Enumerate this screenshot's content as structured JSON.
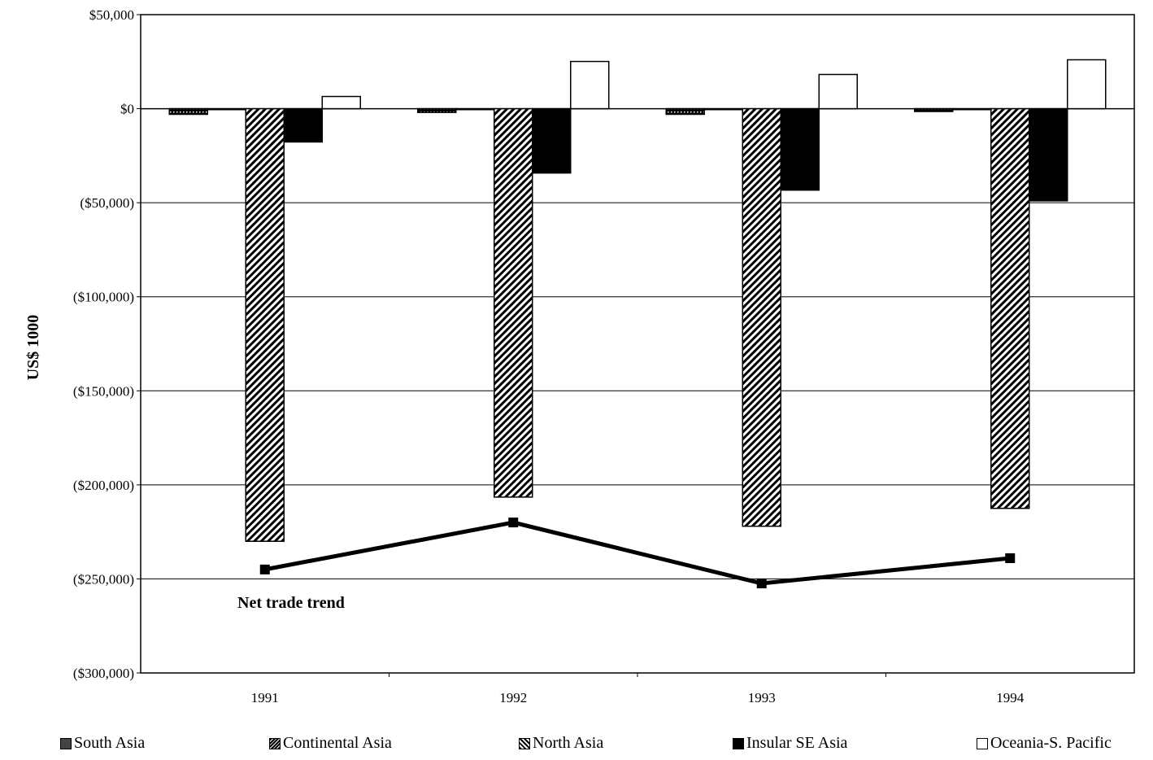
{
  "chart_data": {
    "type": "bar",
    "title": "",
    "xlabel": "",
    "ylabel": "US$ 1000",
    "ylim": [
      -300000,
      50000
    ],
    "yticks": [
      50000,
      0,
      -50000,
      -100000,
      -150000,
      -200000,
      -250000,
      -300000
    ],
    "ytick_labels": [
      "$50,000",
      "$0",
      "($50,000)",
      "($100,000)",
      "($150,000)",
      "($200,000)",
      "($250,000)",
      "($300,000)"
    ],
    "grid": true,
    "legend_position": "bottom",
    "categories": [
      "1991",
      "1992",
      "1993",
      "1994"
    ],
    "series": [
      {
        "name": "South Asia",
        "values": [
          -3000,
          -2000,
          -3000,
          -1500
        ],
        "color": "#555555",
        "pattern": "dots"
      },
      {
        "name": "Continental Asia",
        "values": [
          -500,
          -500,
          -500,
          -500
        ],
        "color": "#333333",
        "pattern": "dense-hatch"
      },
      {
        "name": "North Asia",
        "values": [
          -230000,
          -206500,
          -222000,
          -212500
        ],
        "color": "#000000",
        "pattern": "hatch"
      },
      {
        "name": "Insular SE Asia",
        "values": [
          -17700,
          -34200,
          -43300,
          -49000
        ],
        "color": "#000000",
        "pattern": "solid"
      },
      {
        "name": "Oceania-S. Pacific",
        "values": [
          6500,
          25100,
          18200,
          26000
        ],
        "color": "#ffffff",
        "pattern": "empty"
      }
    ],
    "line": {
      "name": "Net trade trend",
      "values": [
        -245000,
        -220000,
        -252400,
        -239000
      ]
    },
    "annotation": "Net trade trend"
  }
}
